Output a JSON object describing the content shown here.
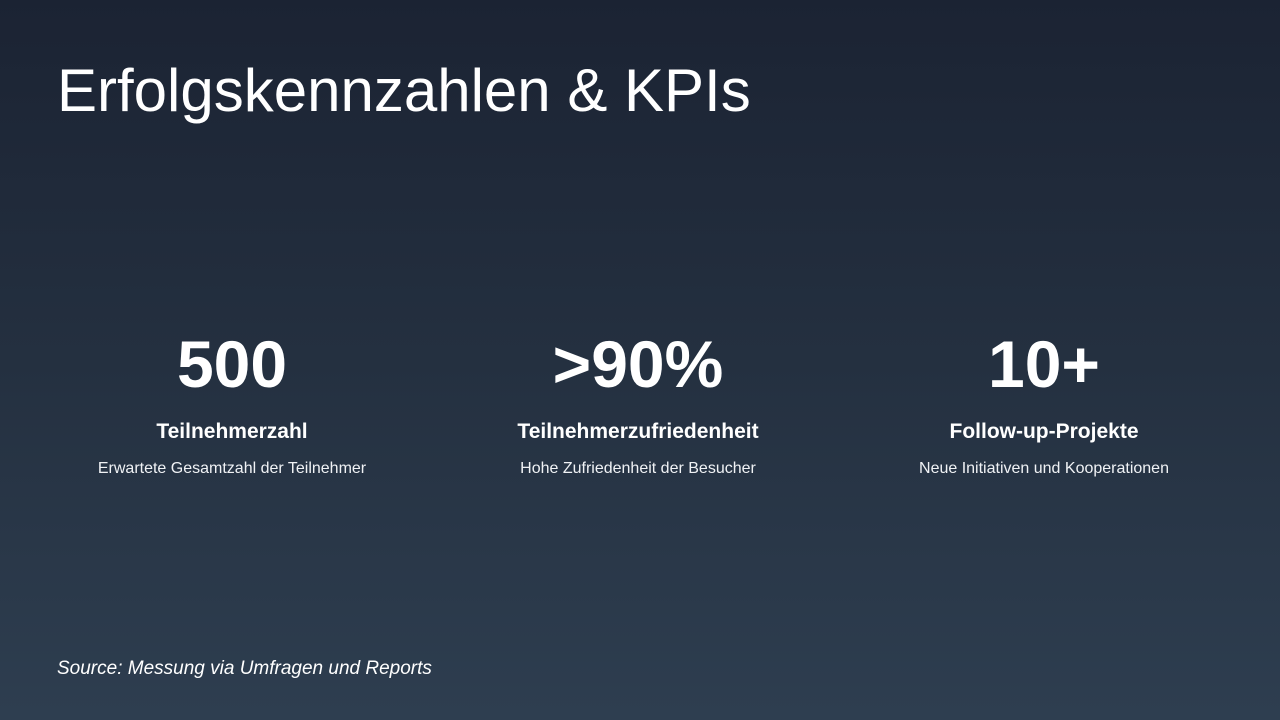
{
  "title": "Erfolgskennzahlen & KPIs",
  "kpis": [
    {
      "value": "500",
      "label": "Teilnehmerzahl",
      "description": "Erwartete Gesamtzahl der Teilnehmer"
    },
    {
      "value": ">90%",
      "label": "Teilnehmerzufriedenheit",
      "description": "Hohe Zufriedenheit der Besucher"
    },
    {
      "value": "10+",
      "label": "Follow-up-Projekte",
      "description": "Neue Initiativen und Kooperationen"
    }
  ],
  "source": "Source: Messung via Umfragen und Reports",
  "colors": {
    "background_top": "#1b2333",
    "background_bottom": "#2e3e50",
    "text": "#ffffff"
  }
}
